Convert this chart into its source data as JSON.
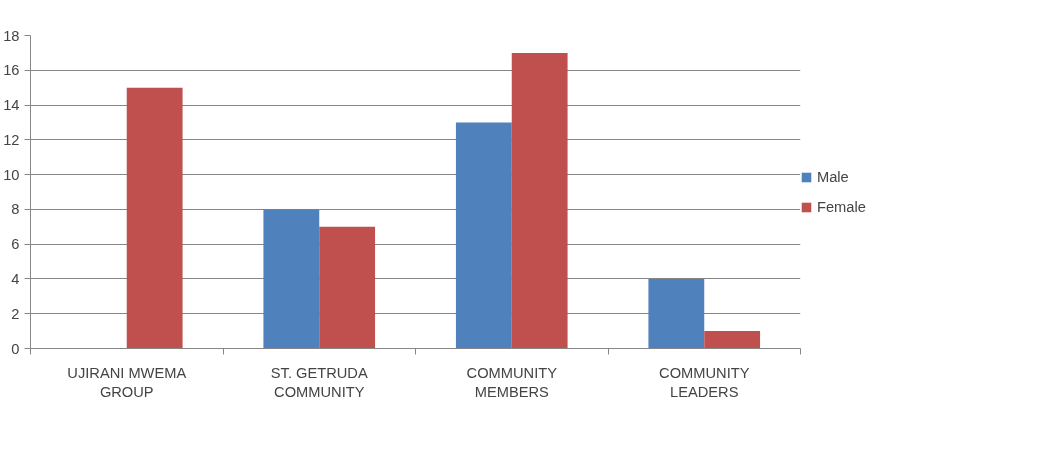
{
  "chart_data": {
    "type": "bar",
    "categories": [
      "UJIRANI MWEMA GROUP",
      "ST. GETRUDA COMMUNITY",
      "COMMUNITY MEMBERS",
      "COMMUNITY LEADERS"
    ],
    "series": [
      {
        "name": "Male",
        "color": "#4f81bd",
        "values": [
          0,
          8,
          13,
          4
        ]
      },
      {
        "name": "Female",
        "color": "#c0504d",
        "values": [
          15,
          7,
          17,
          1
        ]
      }
    ],
    "ylim": [
      0,
      18
    ],
    "yticks": [
      0,
      2,
      4,
      6,
      8,
      10,
      12,
      14,
      16,
      18
    ],
    "grid": "y",
    "legend": "right"
  }
}
